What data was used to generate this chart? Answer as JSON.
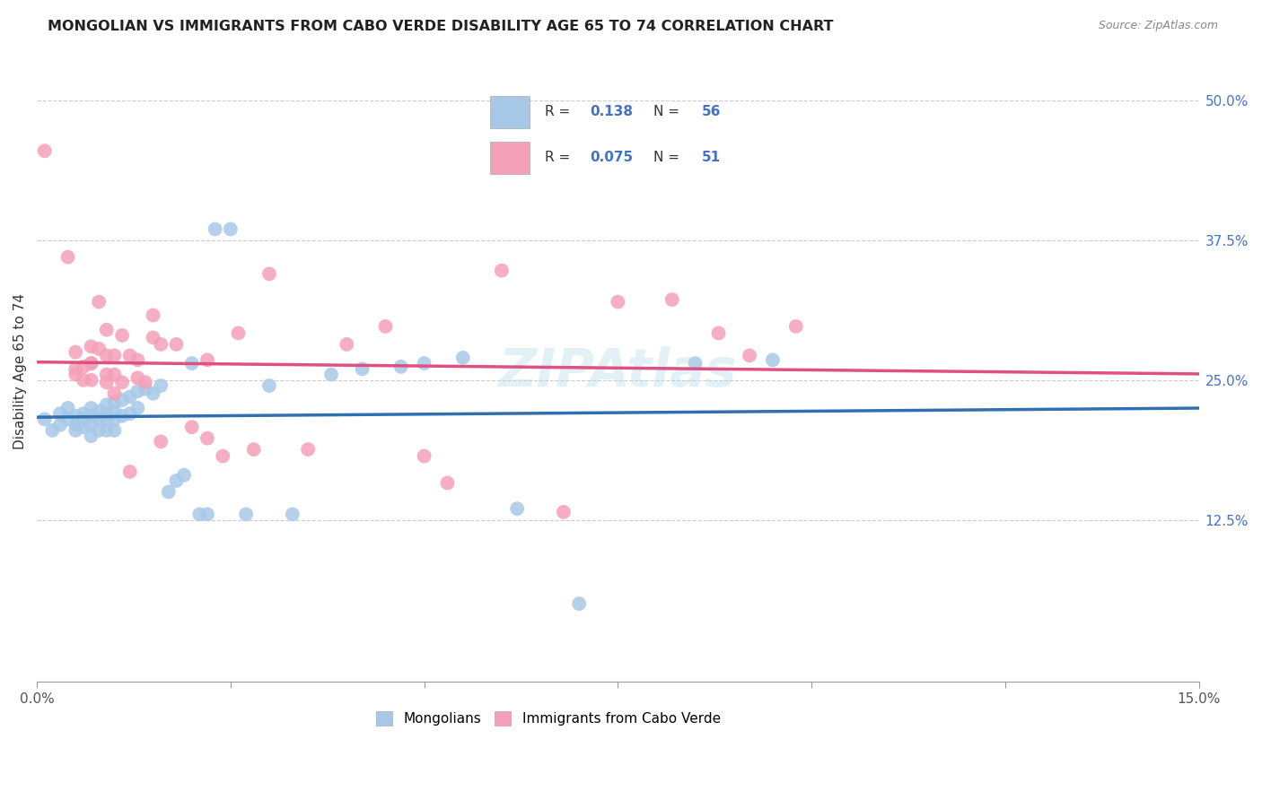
{
  "title": "MONGOLIAN VS IMMIGRANTS FROM CABO VERDE DISABILITY AGE 65 TO 74 CORRELATION CHART",
  "source": "Source: ZipAtlas.com",
  "ylabel": "Disability Age 65 to 74",
  "xlim": [
    0.0,
    0.15
  ],
  "ylim": [
    -0.02,
    0.535
  ],
  "yticks_right": [
    0.125,
    0.25,
    0.375,
    0.5
  ],
  "yticklabels_right": [
    "12.5%",
    "25.0%",
    "37.5%",
    "50.0%"
  ],
  "legend_R1": "0.138",
  "legend_N1": "56",
  "legend_R2": "0.075",
  "legend_N2": "51",
  "blue_color": "#a8c8e8",
  "pink_color": "#f4a0b8",
  "blue_line_color": "#3070b0",
  "pink_line_color": "#e05080",
  "label1": "Mongolians",
  "label2": "Immigrants from Cabo Verde",
  "mongolian_x": [
    0.001,
    0.002,
    0.003,
    0.003,
    0.004,
    0.004,
    0.005,
    0.005,
    0.005,
    0.006,
    0.006,
    0.006,
    0.007,
    0.007,
    0.007,
    0.007,
    0.008,
    0.008,
    0.008,
    0.009,
    0.009,
    0.009,
    0.009,
    0.01,
    0.01,
    0.01,
    0.01,
    0.011,
    0.011,
    0.012,
    0.012,
    0.013,
    0.013,
    0.014,
    0.015,
    0.016,
    0.017,
    0.018,
    0.019,
    0.02,
    0.021,
    0.022,
    0.023,
    0.025,
    0.027,
    0.03,
    0.033,
    0.038,
    0.042,
    0.047,
    0.05,
    0.055,
    0.062,
    0.07,
    0.085,
    0.095
  ],
  "mongolian_y": [
    0.215,
    0.205,
    0.22,
    0.21,
    0.215,
    0.225,
    0.218,
    0.21,
    0.205,
    0.215,
    0.22,
    0.208,
    0.225,
    0.218,
    0.21,
    0.2,
    0.222,
    0.215,
    0.205,
    0.228,
    0.22,
    0.215,
    0.205,
    0.23,
    0.222,
    0.215,
    0.205,
    0.232,
    0.218,
    0.235,
    0.22,
    0.24,
    0.225,
    0.242,
    0.238,
    0.245,
    0.15,
    0.16,
    0.165,
    0.265,
    0.13,
    0.13,
    0.385,
    0.385,
    0.13,
    0.245,
    0.13,
    0.255,
    0.26,
    0.262,
    0.265,
    0.27,
    0.135,
    0.05,
    0.265,
    0.268
  ],
  "caboverde_x": [
    0.001,
    0.004,
    0.005,
    0.005,
    0.006,
    0.006,
    0.007,
    0.007,
    0.007,
    0.008,
    0.008,
    0.009,
    0.009,
    0.009,
    0.01,
    0.01,
    0.01,
    0.011,
    0.011,
    0.012,
    0.013,
    0.013,
    0.014,
    0.015,
    0.015,
    0.016,
    0.018,
    0.02,
    0.022,
    0.024,
    0.026,
    0.028,
    0.03,
    0.035,
    0.04,
    0.045,
    0.05,
    0.053,
    0.06,
    0.068,
    0.075,
    0.082,
    0.088,
    0.092,
    0.098,
    0.005,
    0.007,
    0.009,
    0.012,
    0.016,
    0.022
  ],
  "caboverde_y": [
    0.455,
    0.36,
    0.275,
    0.26,
    0.262,
    0.25,
    0.28,
    0.265,
    0.25,
    0.278,
    0.32,
    0.295,
    0.255,
    0.248,
    0.272,
    0.255,
    0.238,
    0.248,
    0.29,
    0.272,
    0.268,
    0.252,
    0.248,
    0.308,
    0.288,
    0.282,
    0.282,
    0.208,
    0.268,
    0.182,
    0.292,
    0.188,
    0.345,
    0.188,
    0.282,
    0.298,
    0.182,
    0.158,
    0.348,
    0.132,
    0.32,
    0.322,
    0.292,
    0.272,
    0.298,
    0.255,
    0.265,
    0.272,
    0.168,
    0.195,
    0.198
  ]
}
